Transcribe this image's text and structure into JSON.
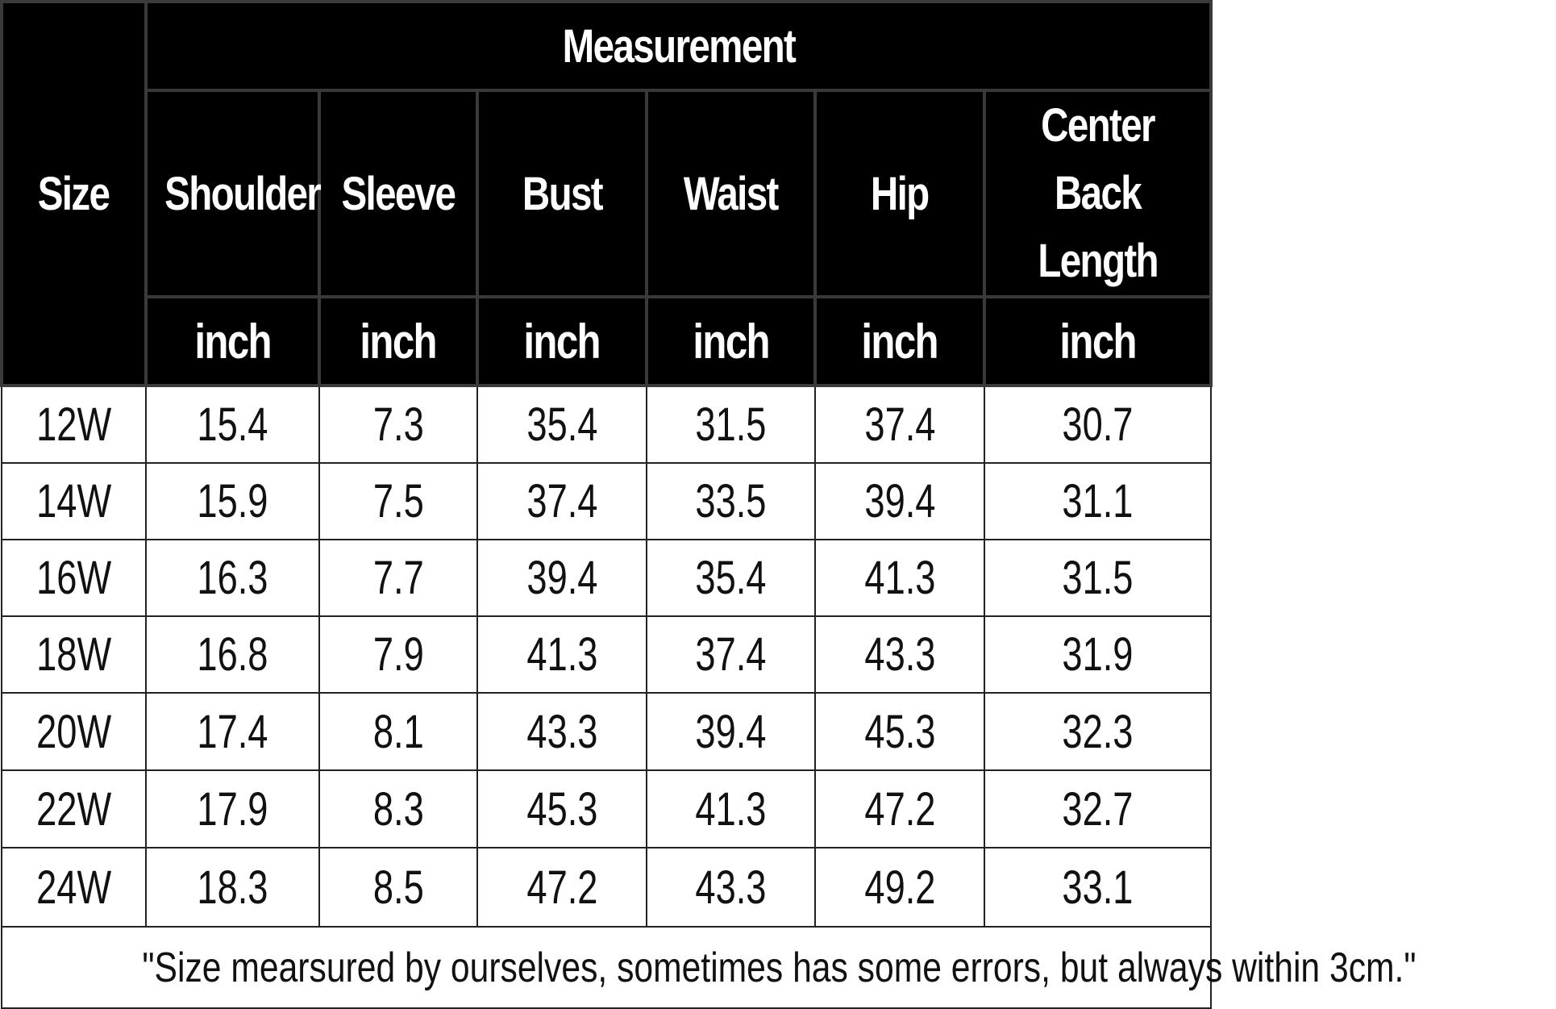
{
  "header": {
    "size_label": "Size",
    "group_label": "Measurement",
    "columns": [
      "Shoulder",
      "Sleeve",
      "Bust",
      "Waist",
      "Hip"
    ],
    "last_column_line1": "Center Back",
    "last_column_line2": "Length",
    "units": [
      "inch",
      "inch",
      "inch",
      "inch",
      "inch",
      "inch"
    ]
  },
  "rows": [
    {
      "size": "12W",
      "values": [
        "15.4",
        "7.3",
        "35.4",
        "31.5",
        "37.4",
        "30.7"
      ]
    },
    {
      "size": "14W",
      "values": [
        "15.9",
        "7.5",
        "37.4",
        "33.5",
        "39.4",
        "31.1"
      ]
    },
    {
      "size": "16W",
      "values": [
        "16.3",
        "7.7",
        "39.4",
        "35.4",
        "41.3",
        "31.5"
      ]
    },
    {
      "size": "18W",
      "values": [
        "16.8",
        "7.9",
        "41.3",
        "37.4",
        "43.3",
        "31.9"
      ]
    },
    {
      "size": "20W",
      "values": [
        "17.4",
        "8.1",
        "43.3",
        "39.4",
        "45.3",
        "32.3"
      ]
    },
    {
      "size": "22W",
      "values": [
        "17.9",
        "8.3",
        "45.3",
        "41.3",
        "47.2",
        "32.7"
      ]
    },
    {
      "size": "24W",
      "values": [
        "18.3",
        "8.5",
        "47.2",
        "43.3",
        "49.2",
        "33.1"
      ]
    }
  ],
  "footnote": "\"Size mearsured by ourselves, sometimes has some errors, but always within 3cm.\""
}
